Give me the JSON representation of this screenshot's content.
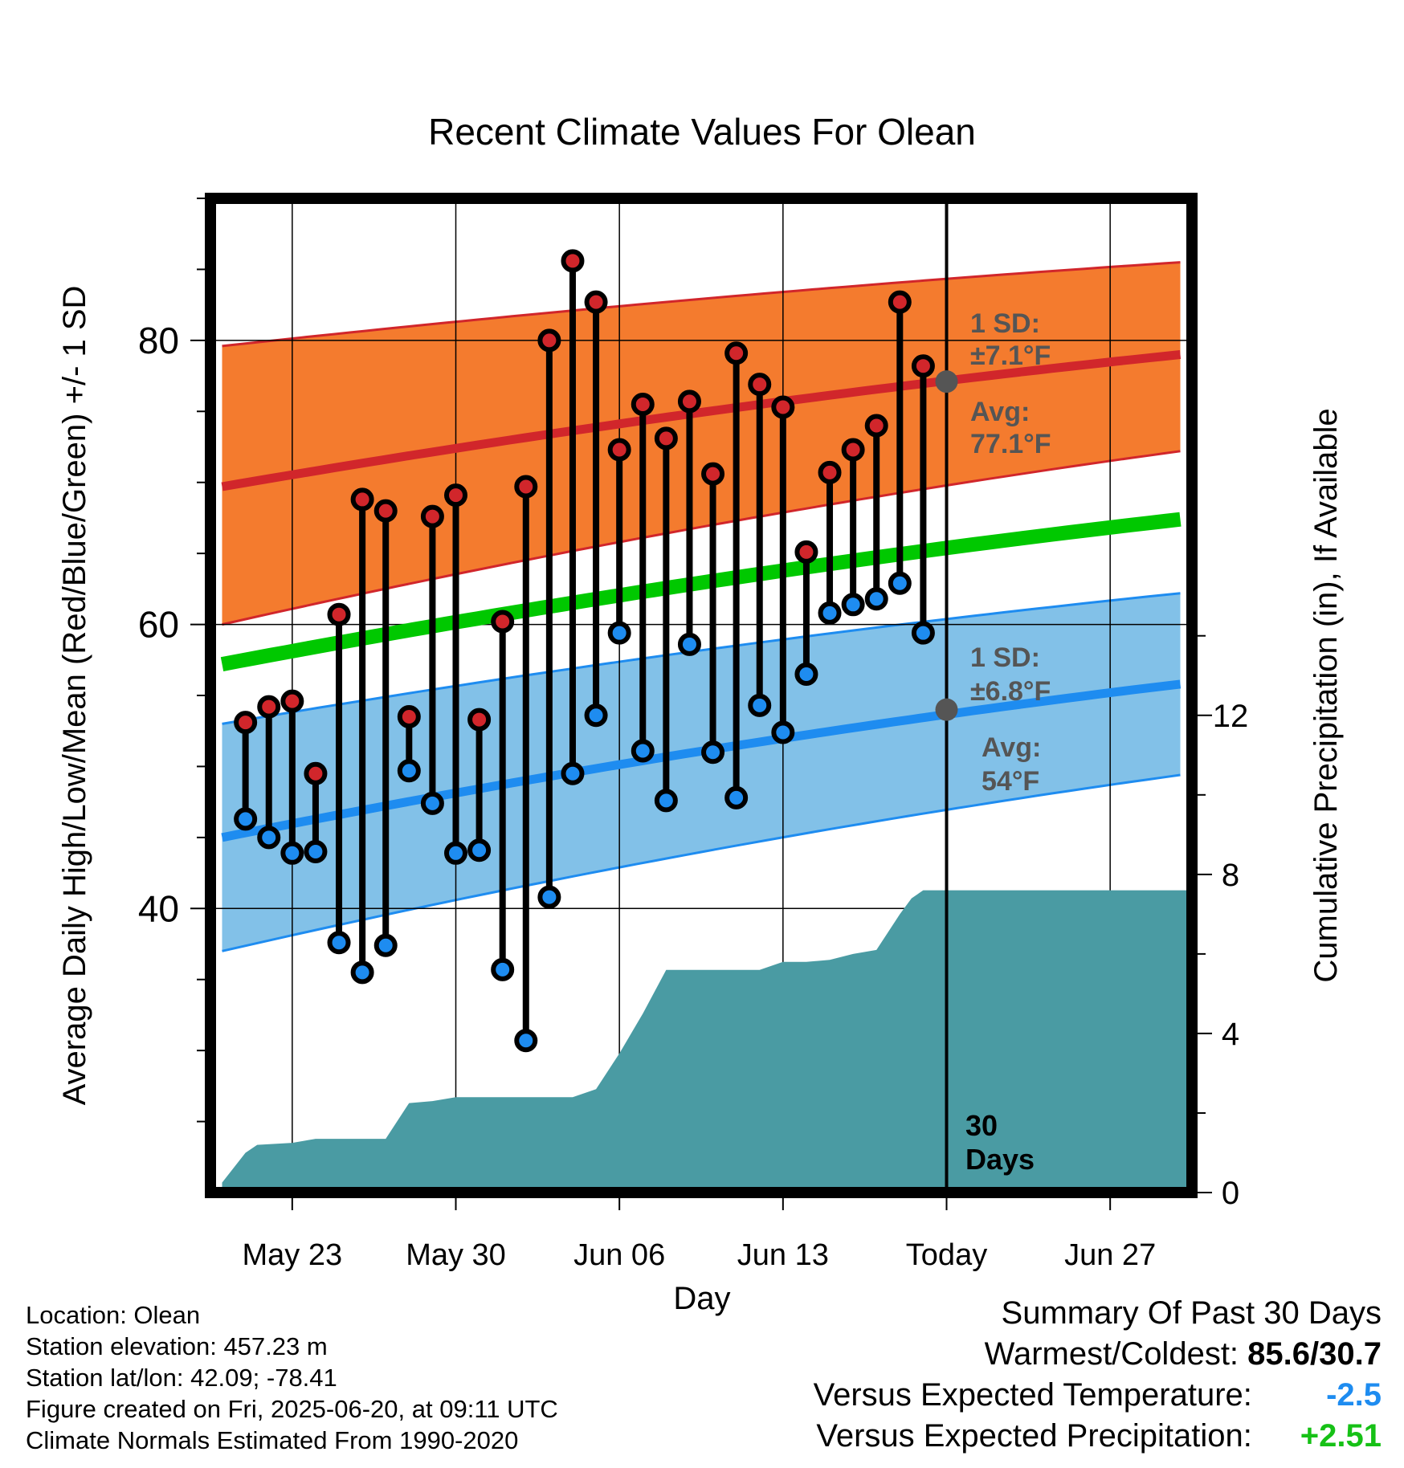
{
  "chart_data": {
    "type": "line",
    "title": "Recent Climate Values For Olean",
    "xlabel": "Day",
    "ylabel": "Average Daily High/Low/Mean (Red/Blue/Green) +/- 1 SD",
    "y2label": "Cumulative Precipitation (in), If Available",
    "x_range_days": [
      -31.5,
      10.5
    ],
    "ylim": [
      20,
      90
    ],
    "y2lim": [
      0,
      25
    ],
    "x_ticks": [
      {
        "day": -28,
        "label": "May 23"
      },
      {
        "day": -21,
        "label": "May 30"
      },
      {
        "day": -14,
        "label": "Jun 06"
      },
      {
        "day": -7,
        "label": "Jun 13"
      },
      {
        "day": 0,
        "label": "Today"
      },
      {
        "day": 7,
        "label": "Jun 27"
      }
    ],
    "y_ticks": [
      40,
      60,
      80
    ],
    "y2_ticks": [
      0,
      4,
      8,
      12
    ],
    "grid": true,
    "colors": {
      "high_band": "#F47B2E",
      "high_mean": "#D1262B",
      "low_band": "#82C1E8",
      "low_mean": "#1E8CF0",
      "mean_line": "#00C800",
      "precip": "#4A9BA3",
      "high_marker": "#D1262B",
      "low_marker": "#1E8CF0",
      "avg_marker": "#555555",
      "annotation_text": "#555555"
    },
    "normals": {
      "days": [
        -31,
        10
      ],
      "high_avg": [
        69.7,
        79.0
      ],
      "high_upper": [
        79.6,
        85.5
      ],
      "high_lower": [
        60.0,
        72.2
      ],
      "low_avg": [
        45.0,
        55.8
      ],
      "low_upper": [
        53.0,
        62.2
      ],
      "low_lower": [
        37.0,
        49.4
      ],
      "mean_avg": [
        57.2,
        67.4
      ]
    },
    "observations": {
      "days": [
        -30,
        -29,
        -28,
        -27,
        -26,
        -25,
        -24,
        -23,
        -22,
        -21,
        -20,
        -19,
        -18,
        -17,
        -16,
        -15,
        -14,
        -13,
        -12,
        -11,
        -10,
        -9,
        -8,
        -7,
        -6,
        -5,
        -4,
        -3,
        -2,
        -1
      ],
      "high": [
        53.1,
        54.2,
        54.6,
        49.5,
        60.7,
        68.8,
        68.0,
        53.5,
        67.6,
        69.1,
        53.3,
        60.2,
        69.7,
        80.0,
        85.6,
        82.7,
        72.3,
        75.5,
        73.1,
        75.7,
        70.6,
        79.1,
        76.9,
        75.3,
        65.1,
        70.7,
        72.3,
        74.0,
        82.7,
        78.2
      ],
      "low": [
        46.3,
        45.0,
        43.9,
        44.0,
        37.6,
        35.5,
        37.4,
        49.7,
        47.4,
        43.9,
        44.1,
        35.7,
        30.7,
        40.8,
        49.5,
        53.6,
        59.4,
        51.1,
        47.6,
        58.6,
        51.0,
        47.8,
        54.3,
        52.4,
        56.5,
        60.8,
        61.4,
        61.8,
        62.9,
        59.4
      ]
    },
    "precip_cumulative": {
      "days": [
        -31,
        -30,
        -29.5,
        -28,
        -27,
        -26,
        -25,
        -24,
        -23,
        -22,
        -21,
        -20,
        -19,
        -18,
        -17,
        -16,
        -15,
        -14,
        -13,
        -12,
        -11,
        -10,
        -9,
        -8,
        -7,
        -6,
        -5,
        -4,
        -3,
        -2,
        -1.5,
        -1,
        0,
        10.5
      ],
      "values": [
        0.25,
        1.0,
        1.2,
        1.25,
        1.35,
        1.35,
        1.35,
        1.35,
        2.25,
        2.3,
        2.4,
        2.4,
        2.4,
        2.4,
        2.4,
        2.4,
        2.6,
        3.5,
        4.5,
        5.6,
        5.6,
        5.6,
        5.6,
        5.6,
        5.8,
        5.8,
        5.85,
        6.0,
        6.1,
        7.0,
        7.4,
        7.6,
        7.6,
        7.6
      ]
    },
    "today_day": 0,
    "annotations": {
      "high_sd": "1 SD:",
      "high_sd_value": "±7.1°F",
      "high_avg": "Avg:",
      "high_avg_value": "77.1°F",
      "low_sd": "1 SD:",
      "low_sd_value": "±6.8°F",
      "low_avg": "Avg:",
      "low_avg_value": "54°F",
      "period_number": "30",
      "period_unit": "Days"
    }
  },
  "metadata": {
    "location": "Location: Olean",
    "elevation": "Station elevation: 457.23 m",
    "latlon": "Station lat/lon: 42.09; -78.41",
    "created": "Figure created on Fri, 2025-06-20, at 09:11 UTC",
    "normals": "Climate Normals Estimated From 1990-2020"
  },
  "summary": {
    "title": "Summary Of Past 30 Days",
    "warm_cold_label": "Warmest/Coldest:",
    "warm_cold_value": "85.6/30.7",
    "temp_label": "Versus Expected Temperature:",
    "temp_value": "-2.5",
    "temp_color": "#1E8CF0",
    "precip_label": "Versus Expected Precipitation:",
    "precip_value": "+2.51",
    "precip_color": "#16C116"
  }
}
